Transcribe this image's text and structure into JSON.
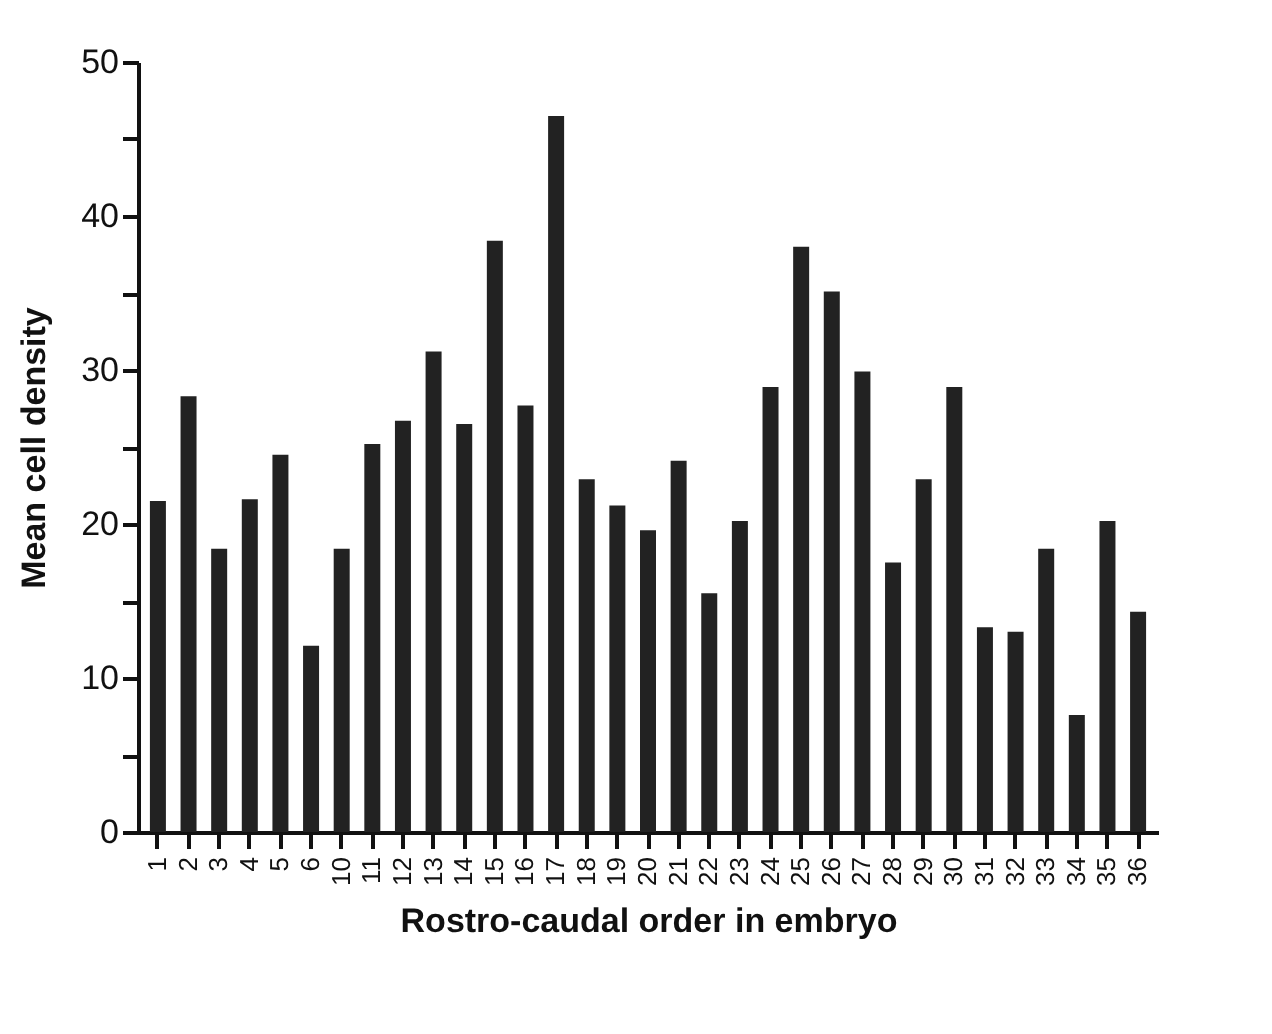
{
  "chart_data": {
    "type": "bar",
    "xlabel": "Rostro-caudal order in embryo",
    "ylabel": "Mean cell density",
    "categories": [
      "1",
      "2",
      "3",
      "4",
      "5",
      "6",
      "10",
      "11",
      "12",
      "13",
      "14",
      "15",
      "16",
      "17",
      "18",
      "19",
      "20",
      "21",
      "22",
      "23",
      "24",
      "25",
      "26",
      "27",
      "28",
      "29",
      "30",
      "31",
      "32",
      "33",
      "34",
      "35",
      "36"
    ],
    "values": [
      21.5,
      28.3,
      18.4,
      21.6,
      24.5,
      12.1,
      18.4,
      25.2,
      26.7,
      31.2,
      26.5,
      38.4,
      27.7,
      46.5,
      22.9,
      21.2,
      19.6,
      24.1,
      15.5,
      20.2,
      28.9,
      38.0,
      35.1,
      29.9,
      17.5,
      22.9,
      28.9,
      13.3,
      13.0,
      18.4,
      7.6,
      20.2,
      14.3
    ],
    "color": "#222222",
    "ylim": [
      0,
      50
    ],
    "yticks": [
      0,
      {
        "value": 5,
        "label": null
      },
      10,
      {
        "value": 15,
        "label": null
      },
      20,
      {
        "value": 25,
        "label": null
      },
      30,
      {
        "value": 35,
        "label": null
      },
      40,
      {
        "value": 45,
        "label": null
      },
      50
    ],
    "grid": false
  }
}
